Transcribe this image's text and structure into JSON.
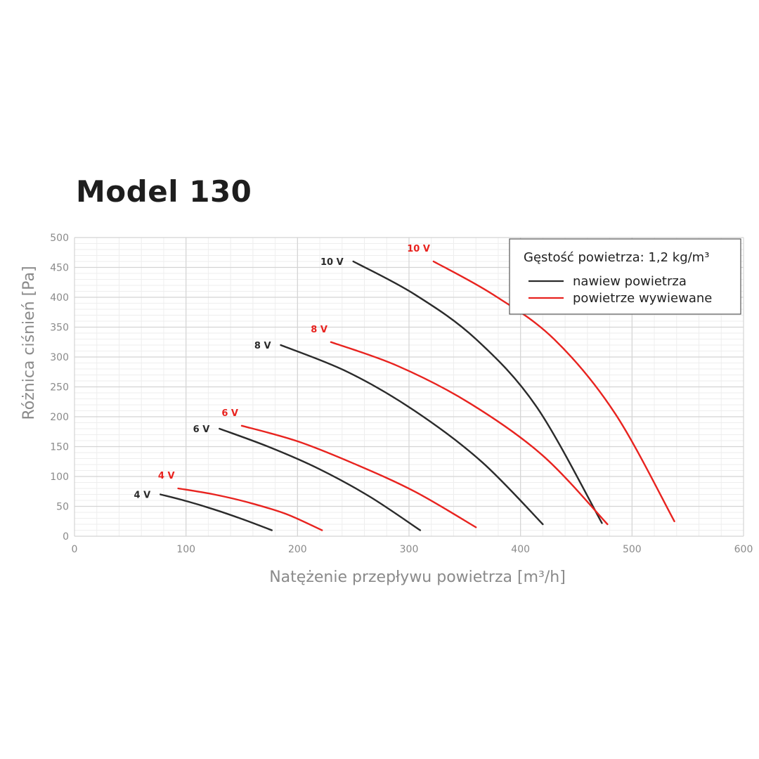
{
  "page": {
    "title": "Model 130"
  },
  "chart_data": {
    "type": "line",
    "xlabel": "Natężenie przepływu powietrza [m³/h]",
    "ylabel": "Różnica ciśnień [Pa]",
    "xlim": [
      0,
      600
    ],
    "ylim": [
      0,
      500
    ],
    "xticks": [
      0,
      100,
      200,
      300,
      400,
      500,
      600
    ],
    "yticks": [
      0,
      50,
      100,
      150,
      200,
      250,
      300,
      350,
      400,
      450,
      500
    ],
    "grid": true,
    "legend": {
      "placement": "top-right",
      "title": "Gęstość powietrza: 1,2 kg/m³",
      "entries": [
        {
          "label": "nawiew powietrza",
          "color": "#2b2b2b"
        },
        {
          "label": "powietrze wywiewane",
          "color": "#e8231f"
        }
      ]
    },
    "series": [
      {
        "group": "nawiew powietrza",
        "label": "4 V",
        "color": "#2b2b2b",
        "x": [
          77,
          100,
          125,
          150,
          177
        ],
        "y": [
          70,
          59,
          45,
          29,
          10
        ]
      },
      {
        "group": "nawiew powietrza",
        "label": "6 V",
        "color": "#2b2b2b",
        "x": [
          130,
          175,
          220,
          265,
          310
        ],
        "y": [
          180,
          149,
          112,
          66,
          10
        ]
      },
      {
        "group": "nawiew powietrza",
        "label": "8 V",
        "color": "#2b2b2b",
        "x": [
          185,
          245,
          305,
          365,
          420
        ],
        "y": [
          320,
          275,
          210,
          125,
          20
        ]
      },
      {
        "group": "nawiew powietrza",
        "label": "10 V",
        "color": "#2b2b2b",
        "x": [
          250,
          305,
          360,
          415,
          473
        ],
        "y": [
          460,
          405,
          330,
          215,
          22
        ]
      },
      {
        "group": "powietrze wywiewane",
        "label": "4 V",
        "color": "#e8231f",
        "x": [
          93,
          125,
          157,
          190,
          222
        ],
        "y": [
          80,
          70,
          56,
          37,
          10
        ]
      },
      {
        "group": "powietrze wywiewane",
        "label": "6 V",
        "color": "#e8231f",
        "x": [
          150,
          200,
          250,
          305,
          360
        ],
        "y": [
          185,
          159,
          122,
          75,
          15
        ]
      },
      {
        "group": "powietrze wywiewane",
        "label": "8 V",
        "color": "#e8231f",
        "x": [
          230,
          290,
          355,
          420,
          478
        ],
        "y": [
          325,
          285,
          222,
          135,
          20
        ]
      },
      {
        "group": "powietrze wywiewane",
        "label": "10 V",
        "color": "#e8231f",
        "x": [
          322,
          375,
          430,
          485,
          538
        ],
        "y": [
          460,
          405,
          330,
          205,
          25
        ]
      }
    ]
  }
}
